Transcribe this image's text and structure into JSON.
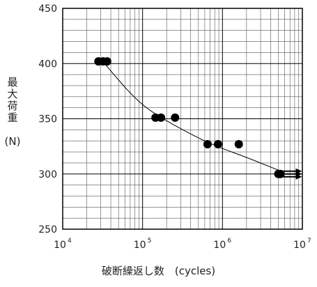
{
  "chart_data": {
    "type": "scatter",
    "x_scale": "log",
    "xlim": [
      10000,
      10000000
    ],
    "ylim": [
      250,
      450
    ],
    "grid": true,
    "xlabel": "破断繰返し数　(cycles)",
    "ylabel": "最大荷重　(N)",
    "ylabel_vertical": "最\n大\n荷\n重\n\n(N)",
    "x_ticks": [
      {
        "base": "10",
        "exp": "4",
        "value": 10000
      },
      {
        "base": "10",
        "exp": "5",
        "value": 100000
      },
      {
        "base": "10",
        "exp": "6",
        "value": 1000000
      },
      {
        "base": "10",
        "exp": "7",
        "value": 10000000
      }
    ],
    "y_ticks": [
      "250",
      "300",
      "350",
      "400",
      "450"
    ],
    "y_tick_values": [
      250,
      300,
      350,
      400,
      450
    ],
    "points": [
      {
        "x": 28000,
        "y": 402
      },
      {
        "x": 32000,
        "y": 402
      },
      {
        "x": 36000,
        "y": 402
      },
      {
        "x": 145000,
        "y": 351
      },
      {
        "x": 170000,
        "y": 351
      },
      {
        "x": 255000,
        "y": 351
      },
      {
        "x": 650000,
        "y": 327
      },
      {
        "x": 880000,
        "y": 327
      },
      {
        "x": 1600000,
        "y": 327
      },
      {
        "x": 5000000,
        "y": 300,
        "runout": true
      },
      {
        "x": 5300000,
        "y": 300,
        "runout": true
      }
    ],
    "fit_curve": [
      {
        "x": 30000,
        "y": 404
      },
      {
        "x": 45000,
        "y": 389
      },
      {
        "x": 70000,
        "y": 373
      },
      {
        "x": 110000,
        "y": 360
      },
      {
        "x": 180000,
        "y": 350
      },
      {
        "x": 300000,
        "y": 341
      },
      {
        "x": 550000,
        "y": 331
      },
      {
        "x": 1000000,
        "y": 323
      },
      {
        "x": 2000000,
        "y": 315
      },
      {
        "x": 3500000,
        "y": 308
      },
      {
        "x": 5200000,
        "y": 303
      }
    ],
    "colors": {
      "points": "#000000",
      "grid": "#555555",
      "curve": "#000000"
    }
  }
}
